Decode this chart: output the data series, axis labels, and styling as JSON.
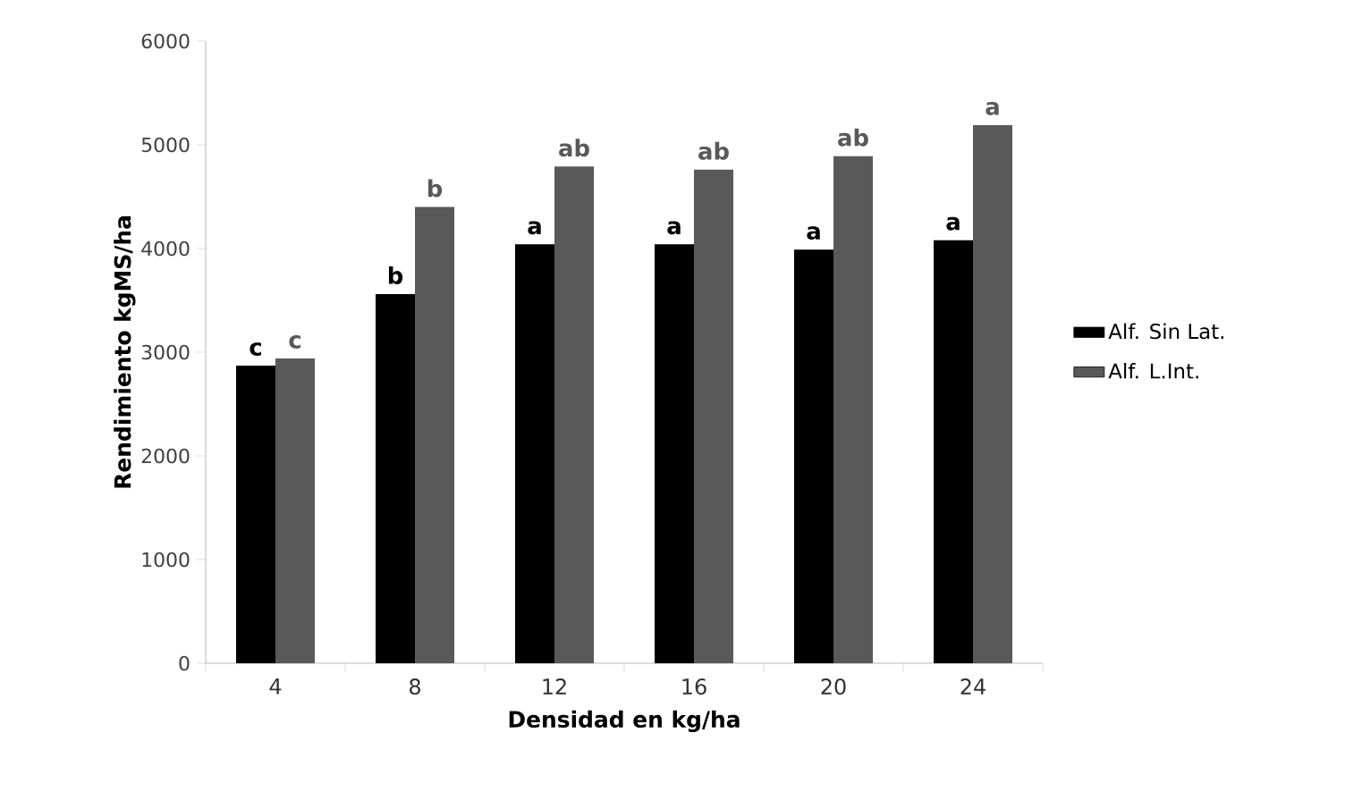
{
  "chart_data": {
    "type": "bar",
    "xlabel": "Densidad en kg/ha",
    "ylabel": "Rendimiento kgMS/ha",
    "categories": [
      "4",
      "8",
      "12",
      "16",
      "20",
      "24"
    ],
    "series": [
      {
        "name": "Alf.  Sin Lat.",
        "color": "#000000",
        "values": [
          2870,
          3560,
          4040,
          4040,
          3990,
          4080
        ],
        "value_labels": [
          "c",
          "b",
          "a",
          "a",
          "a",
          "a"
        ]
      },
      {
        "name": "Alf. L.Int.",
        "color": "#595959",
        "values": [
          2940,
          4400,
          4790,
          4760,
          4890,
          5190
        ],
        "value_labels": [
          "c",
          "b",
          "ab",
          "ab",
          "ab",
          "a"
        ]
      }
    ],
    "ylim": [
      0,
      6000
    ],
    "yticks": [
      0,
      1000,
      2000,
      3000,
      4000,
      5000,
      6000
    ],
    "legend": "right"
  }
}
